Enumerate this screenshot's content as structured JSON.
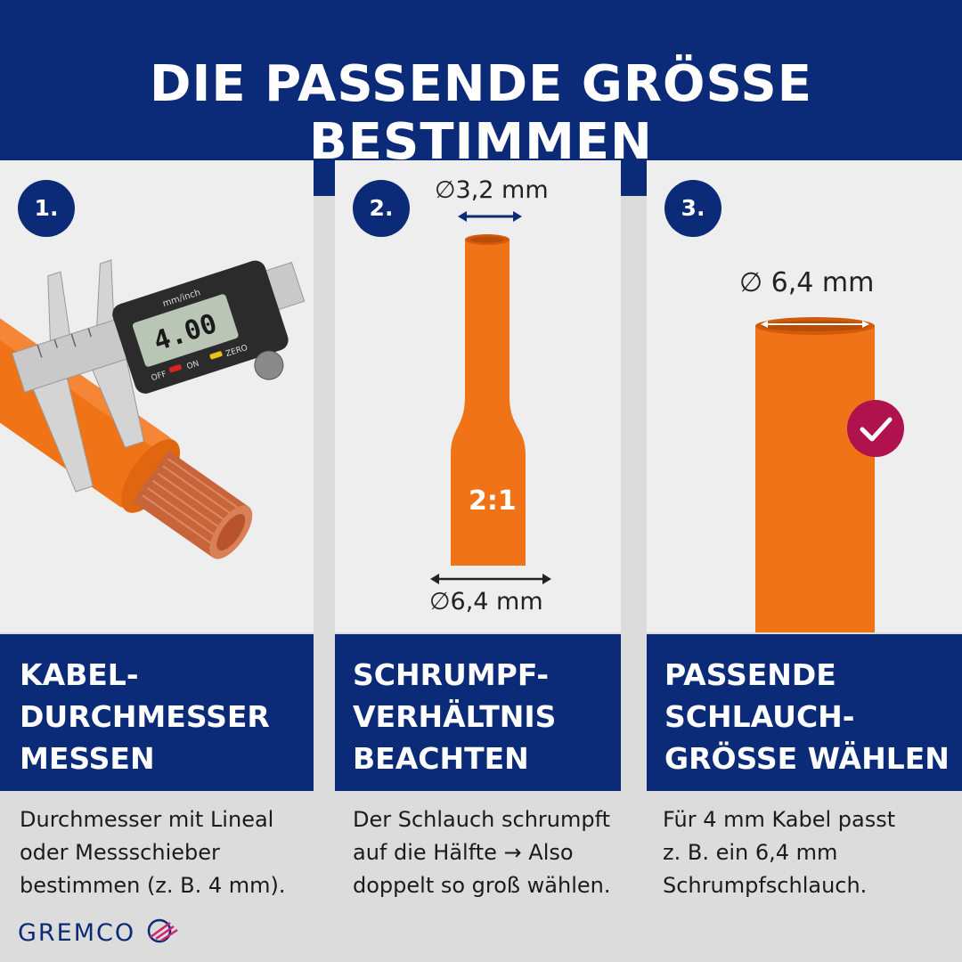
{
  "header": {
    "title": "DIE PASSENDE GRÖSSE BESTIMMEN"
  },
  "steps": [
    {
      "number": "1.",
      "title_lines": [
        "KABEL-",
        "DURCHMESSER",
        "MESSEN"
      ],
      "description_lines": [
        "Durchmesser mit Lineal",
        "oder Messschieber",
        "bestimmen (z. B. 4 mm)."
      ],
      "caliper_reading": "4.00",
      "caliper_labels": {
        "units": "mm/inch",
        "off": "OFF",
        "on": "ON",
        "zero": "ZERO"
      }
    },
    {
      "number": "2.",
      "title_lines": [
        "SCHRUMPF-",
        "VERHÄLTNIS",
        "BEACHTEN"
      ],
      "description_lines": [
        "Der Schlauch schrumpft",
        "auf die Hälfte → Also",
        "doppelt so groß wählen."
      ],
      "top_diameter": "∅3,2 mm",
      "bottom_diameter": "∅6,4 mm",
      "ratio_label": "2:1"
    },
    {
      "number": "3.",
      "title_lines": [
        "PASSENDE",
        "SCHLAUCH-",
        "GRÖSSE WÄHLEN"
      ],
      "description_lines": [
        "Für 4 mm Kabel passt",
        "z. B. ein 6,4 mm",
        "Schrumpfschlauch."
      ],
      "diameter": "∅ 6,4 mm",
      "check_icon": "checkmark-icon"
    }
  ],
  "brand": {
    "name": "GREMCO"
  },
  "colors": {
    "navy": "#0b2a78",
    "orange": "#f07417",
    "check": "#b0124e",
    "copper": "#c8643a"
  }
}
